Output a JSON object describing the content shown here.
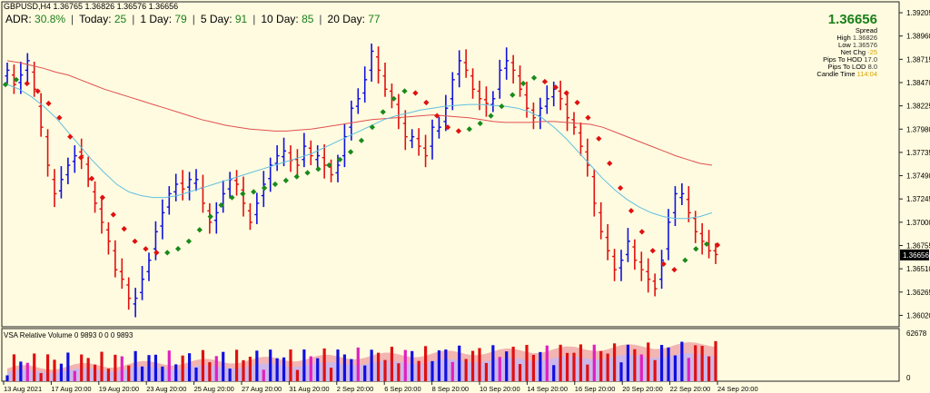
{
  "header": {
    "symbol_line": "GBPUSD,H4  1.36765 1.36826 1.36576 1.36656"
  },
  "adr_bar": [
    {
      "label": "ADR:",
      "value": "30.8%"
    },
    {
      "label": "Today:",
      "value": "25"
    },
    {
      "label": "1 Day:",
      "value": "79"
    },
    {
      "label": "5 Day:",
      "value": "91"
    },
    {
      "label": "10 Day:",
      "value": "85"
    },
    {
      "label": "20 Day:",
      "value": "77"
    }
  ],
  "info_panel": {
    "price": "1.36656",
    "rows": [
      {
        "label": "Spread",
        "value": "",
        "tone": ""
      },
      {
        "label": "High",
        "value": "1.36826",
        "tone": ""
      },
      {
        "label": "Low",
        "value": "1.36576",
        "tone": ""
      },
      {
        "label": "Net Chg",
        "value": "-25",
        "tone": "y"
      },
      {
        "label": "Pips To HOD",
        "value": "17.0",
        "tone": ""
      },
      {
        "label": "Pips To LOD",
        "value": "8.0",
        "tone": ""
      },
      {
        "label": "Candle Time",
        "value": "114:04",
        "tone": "y"
      }
    ]
  },
  "price_axis": {
    "labels": [
      "1.39205",
      "1.38960",
      "1.38715",
      "1.38470",
      "1.38225",
      "1.37980",
      "1.37735",
      "1.37490",
      "1.37245",
      "1.37000",
      "1.36755",
      "1.36510",
      "1.36265",
      "1.36020"
    ],
    "current_price": "1.36656"
  },
  "vsa_panel": {
    "label": "VSA Relative Volume 0 9893 0 0 0 9893",
    "axis_max": "62678",
    "axis_min": "0"
  },
  "time_axis": {
    "labels": [
      "13 Aug 2021",
      "17 Aug 20:00",
      "19 Aug 20:00",
      "23 Aug 20:00",
      "25 Aug 20:00",
      "27 Aug 20:00",
      "31 Aug 20:00",
      "2 Sep 20:00",
      "6 Sep 20:00",
      "8 Sep 20:00",
      "10 Sep 20:00",
      "14 Sep 20:00",
      "16 Sep 20:00",
      "20 Sep 20:00",
      "22 Sep 20:00",
      "24 Sep 20:00"
    ]
  },
  "colors": {
    "bull": "#1010e0",
    "bear": "#e01010",
    "ma_slow": "#e05050",
    "ma_fast": "#60c0e0",
    "trend_up": "#1a8a1a",
    "trend_down": "#e01010",
    "background": "#fffbe0"
  },
  "chart_data": {
    "type": "candlestick",
    "symbol": "GBPUSD",
    "timeframe": "H4",
    "ylim": [
      1.359,
      1.3932
    ],
    "closes": [
      1.386,
      1.3845,
      1.3855,
      1.387,
      1.384,
      1.38,
      1.376,
      1.373,
      1.3745,
      1.376,
      1.377,
      1.377,
      1.3745,
      1.372,
      1.37,
      1.368,
      1.365,
      1.364,
      1.362,
      1.362,
      1.364,
      1.366,
      1.369,
      1.371,
      1.373,
      1.374,
      1.3735,
      1.3745,
      1.3745,
      1.372,
      1.37,
      1.371,
      1.373,
      1.3745,
      1.374,
      1.372,
      1.37,
      1.372,
      1.374,
      1.376,
      1.377,
      1.3775,
      1.3765,
      1.376,
      1.378,
      1.377,
      1.377,
      1.376,
      1.375,
      1.376,
      1.379,
      1.382,
      1.383,
      1.385,
      1.388,
      1.386,
      1.384,
      1.383,
      1.381,
      1.379,
      1.379,
      1.378,
      1.377,
      1.38,
      1.38,
      1.382,
      1.385,
      1.387,
      1.386,
      1.384,
      1.383,
      1.3825,
      1.383,
      1.386,
      1.387,
      1.386,
      1.384,
      1.382,
      1.381,
      1.382,
      1.383,
      1.384,
      1.383,
      1.381,
      1.38,
      1.378,
      1.376,
      1.372,
      1.369,
      1.367,
      1.365,
      1.366,
      1.368,
      1.366,
      1.365,
      1.364,
      1.363,
      1.366,
      1.37,
      1.373,
      1.373,
      1.371,
      1.369,
      1.368,
      1.367,
      1.3666
    ],
    "opens_offset": [
      0.0006,
      -0.001,
      0.0008,
      0.001,
      -0.0018,
      -0.0022,
      -0.003,
      -0.0015,
      0.0012,
      0.001,
      0.0006,
      -0.0004,
      -0.0016,
      -0.0012,
      -0.0014,
      -0.0012,
      -0.002,
      -0.0008,
      -0.0014,
      0.0006,
      0.0014,
      0.0012,
      0.0018,
      0.0014,
      0.0014,
      0.0008,
      -0.0006,
      0.0008,
      0.0004,
      -0.0016,
      -0.0012,
      0.0008,
      0.0012,
      0.001,
      -0.0004,
      -0.0014,
      -0.0012,
      0.0012,
      0.0012,
      0.0014,
      0.0008,
      0.0006,
      -0.0008,
      -0.0006,
      0.0014,
      -0.0008,
      0.0004,
      -0.0008,
      -0.0008,
      0.0008,
      0.002,
      0.002,
      0.0008,
      0.0014,
      0.002,
      -0.0014,
      -0.0014,
      -0.0008,
      -0.0014,
      -0.0014,
      0.0004,
      -0.0008,
      -0.0008,
      0.002,
      0.0004,
      0.0014,
      0.002,
      0.0014,
      -0.0008,
      -0.0014,
      -0.0008,
      -0.0004,
      0.0006,
      0.002,
      0.0008,
      -0.0008,
      -0.0014,
      -0.0014,
      -0.0008,
      0.0008,
      0.0008,
      0.0008,
      -0.0008,
      -0.0014,
      -0.0008,
      -0.0014,
      -0.0014,
      -0.0028,
      -0.002,
      -0.0014,
      -0.0014,
      0.0008,
      0.0014,
      -0.0014,
      -0.0008,
      -0.0008,
      -0.0008,
      0.002,
      0.0028,
      0.002,
      0.0004,
      -0.0014,
      -0.0014,
      -0.0008,
      -0.0008,
      -0.0004
    ],
    "ma_slow": [
      1.387,
      1.3868,
      1.3865,
      1.3862,
      1.3858,
      1.3855,
      1.385,
      1.3845,
      1.384,
      1.3836,
      1.3832,
      1.3828,
      1.3824,
      1.382,
      1.3816,
      1.3812,
      1.3808,
      1.3805,
      1.3802,
      1.38,
      1.3798,
      1.3797,
      1.3796,
      1.3796,
      1.3797,
      1.3798,
      1.38,
      1.3802,
      1.3804,
      1.3806,
      1.3808,
      1.3809,
      1.381,
      1.3811,
      1.3812,
      1.3813,
      1.3812,
      1.3811,
      1.381,
      1.3808,
      1.3806,
      1.3805,
      1.3805,
      1.3805,
      1.3806,
      1.3806,
      1.3805,
      1.3804,
      1.3803,
      1.38,
      1.3795,
      1.379,
      1.3785,
      1.378,
      1.3775,
      1.377,
      1.3766,
      1.3762,
      1.376
    ],
    "ma_fast": [
      1.3845,
      1.384,
      1.3832,
      1.3822,
      1.381,
      1.3795,
      1.378,
      1.3765,
      1.3752,
      1.374,
      1.3732,
      1.3728,
      1.3726,
      1.3726,
      1.3728,
      1.3732,
      1.3736,
      1.374,
      1.3744,
      1.3748,
      1.3752,
      1.3756,
      1.376,
      1.3764,
      1.3768,
      1.3772,
      1.3778,
      1.3784,
      1.379,
      1.3796,
      1.3802,
      1.3808,
      1.3812,
      1.3815,
      1.3818,
      1.382,
      1.3822,
      1.3823,
      1.3824,
      1.3824,
      1.3823,
      1.3822,
      1.382,
      1.3816,
      1.381,
      1.38,
      1.3788,
      1.3774,
      1.376,
      1.3746,
      1.3734,
      1.3724,
      1.3716,
      1.371,
      1.3706,
      1.3704,
      1.3704,
      1.3706,
      1.371
    ],
    "trend_line": [
      1.3845,
      1.385,
      1.3846,
      1.3838,
      1.3825,
      1.381,
      1.379,
      1.3768,
      1.3746,
      1.3726,
      1.3708,
      1.3693,
      1.368,
      1.3672,
      1.3668,
      1.3668,
      1.3672,
      1.368,
      1.3692,
      1.3706,
      1.3718,
      1.3726,
      1.373,
      1.3732,
      1.3736,
      1.374,
      1.3744,
      1.3748,
      1.3752,
      1.3756,
      1.376,
      1.3766,
      1.3774,
      1.3786,
      1.38,
      1.3816,
      1.383,
      1.3838,
      1.3836,
      1.3826,
      1.3812,
      1.38,
      1.3796,
      1.3798,
      1.3804,
      1.3812,
      1.3822,
      1.3834,
      1.3846,
      1.3852,
      1.3848,
      1.3842,
      1.3836,
      1.3826,
      1.381,
      1.3788,
      1.3762,
      1.3736,
      1.3712,
      1.369,
      1.367,
      1.3656,
      1.365,
      1.366,
      1.3672,
      1.3677,
      1.3676
    ],
    "volume_max": 62678
  }
}
